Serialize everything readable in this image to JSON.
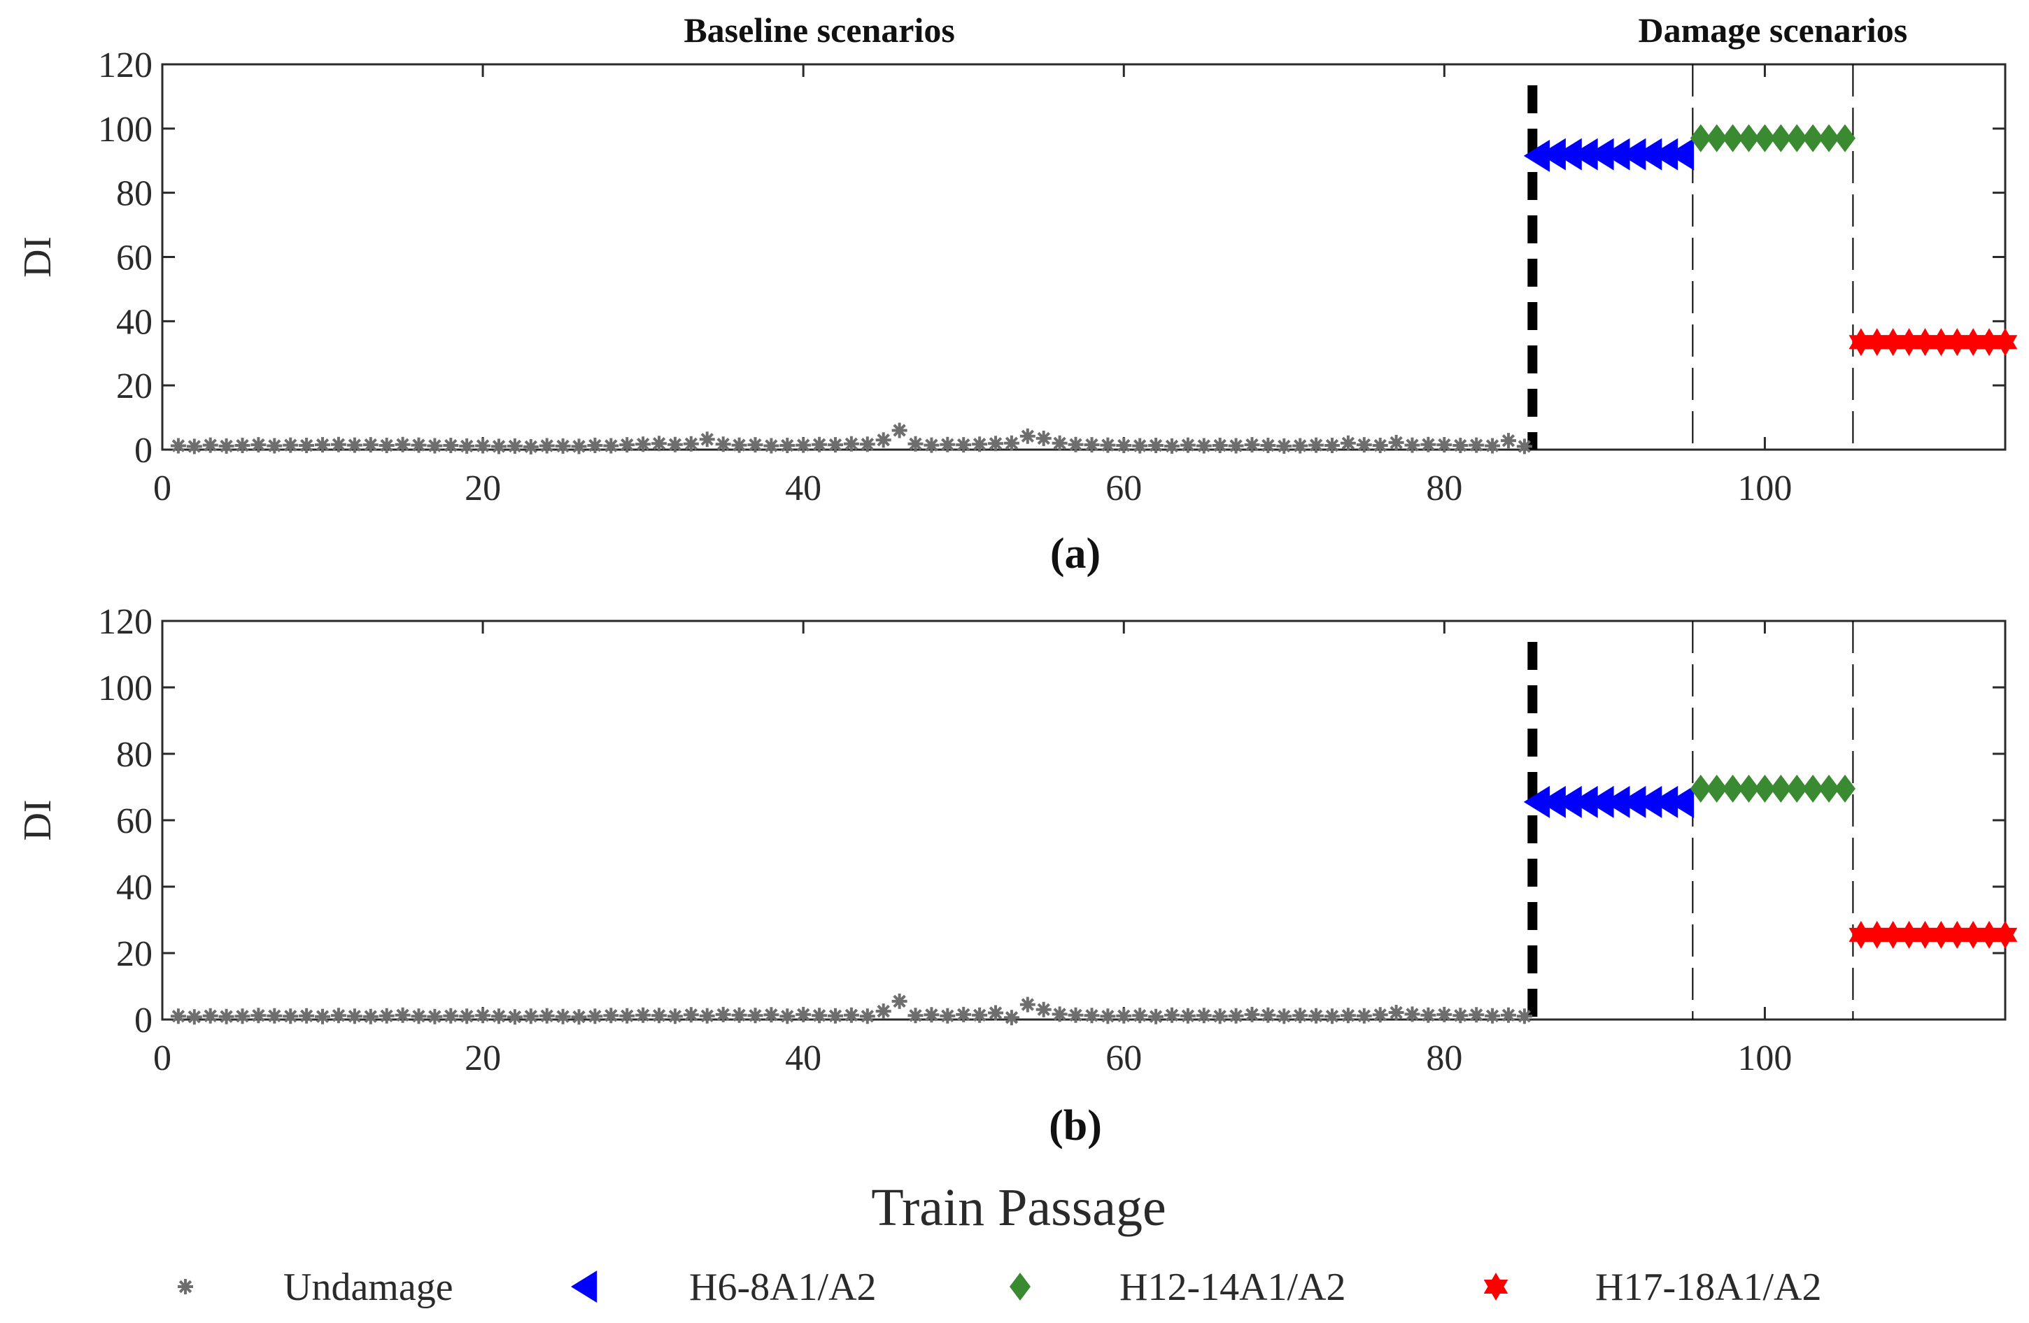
{
  "chart_data": [
    {
      "type": "scatter",
      "panel_label": "(a)",
      "ylabel": "DI",
      "xlim": [
        0,
        115
      ],
      "ylim": [
        0,
        120
      ],
      "xticks": [
        0,
        20,
        40,
        60,
        80,
        100
      ],
      "yticks": [
        0,
        20,
        40,
        60,
        80,
        100,
        120
      ],
      "section_labels": [
        "Baseline scenarios",
        "Damage scenarios"
      ],
      "separators": [
        85.5,
        95.5,
        105.5
      ],
      "series": [
        {
          "name": "Undamage",
          "marker": "asterisk",
          "color": "#6e6e6e",
          "x": [
            1,
            2,
            3,
            4,
            5,
            6,
            7,
            8,
            9,
            10,
            11,
            12,
            13,
            14,
            15,
            16,
            17,
            18,
            19,
            20,
            21,
            22,
            23,
            24,
            25,
            26,
            27,
            28,
            29,
            30,
            31,
            32,
            33,
            34,
            35,
            36,
            37,
            38,
            39,
            40,
            41,
            42,
            43,
            44,
            45,
            46,
            47,
            48,
            49,
            50,
            51,
            52,
            53,
            54,
            55,
            56,
            57,
            58,
            59,
            60,
            61,
            62,
            63,
            64,
            65,
            66,
            67,
            68,
            69,
            70,
            71,
            72,
            73,
            74,
            75,
            76,
            77,
            78,
            79,
            80,
            81,
            82,
            83,
            84,
            85
          ],
          "y": [
            1.2,
            1.0,
            1.4,
            1.1,
            1.3,
            1.5,
            1.2,
            1.4,
            1.3,
            1.5,
            1.6,
            1.4,
            1.5,
            1.3,
            1.6,
            1.4,
            1.2,
            1.3,
            1.1,
            1.2,
            1.0,
            1.1,
            0.9,
            1.2,
            1.1,
            1.0,
            1.3,
            1.2,
            1.5,
            1.7,
            1.9,
            1.6,
            1.8,
            3.2,
            1.7,
            1.4,
            1.5,
            1.2,
            1.3,
            1.4,
            1.6,
            1.5,
            1.8,
            1.7,
            3.0,
            6.0,
            1.8,
            1.4,
            1.6,
            1.5,
            1.7,
            1.9,
            2.0,
            4.2,
            3.5,
            2.0,
            1.6,
            1.5,
            1.4,
            1.3,
            1.2,
            1.3,
            1.1,
            1.4,
            1.2,
            1.3,
            1.2,
            1.5,
            1.3,
            1.1,
            1.2,
            1.4,
            1.3,
            2.0,
            1.5,
            1.3,
            2.2,
            1.4,
            1.6,
            1.5,
            1.3,
            1.4,
            1.2,
            2.8,
            1.0
          ]
        },
        {
          "name": "H6-8A1/A2",
          "marker": "triangle-left",
          "color": "#0000ff",
          "x": [
            86,
            87,
            88,
            89,
            90,
            91,
            92,
            93,
            94,
            95
          ],
          "y": [
            91.5,
            92,
            92,
            92,
            92,
            92,
            92,
            92,
            92,
            92
          ]
        },
        {
          "name": "H12-14A1/A2",
          "marker": "diamond",
          "color": "#3a8a32",
          "x": [
            96,
            97,
            98,
            99,
            100,
            101,
            102,
            103,
            104,
            105
          ],
          "y": [
            97,
            97,
            97,
            97,
            97,
            97,
            97,
            97,
            97,
            97
          ]
        },
        {
          "name": "H17-18A1/A2",
          "marker": "hexagram",
          "color": "#ff0000",
          "x": [
            106,
            107,
            108,
            109,
            110,
            111,
            112,
            113,
            114,
            115
          ],
          "y": [
            33.5,
            33.5,
            33.5,
            33.5,
            33.5,
            33.5,
            33.5,
            33.5,
            33.5,
            33.5
          ]
        }
      ]
    },
    {
      "type": "scatter",
      "panel_label": "(b)",
      "ylabel": "DI",
      "xlim": [
        0,
        115
      ],
      "ylim": [
        0,
        120
      ],
      "xticks": [
        0,
        20,
        40,
        60,
        80,
        100
      ],
      "yticks": [
        0,
        20,
        40,
        60,
        80,
        100,
        120
      ],
      "separators": [
        85.5,
        95.5,
        105.5
      ],
      "series": [
        {
          "name": "Undamage",
          "marker": "asterisk",
          "color": "#6e6e6e",
          "x": [
            1,
            2,
            3,
            4,
            5,
            6,
            7,
            8,
            9,
            10,
            11,
            12,
            13,
            14,
            15,
            16,
            17,
            18,
            19,
            20,
            21,
            22,
            23,
            24,
            25,
            26,
            27,
            28,
            29,
            30,
            31,
            32,
            33,
            34,
            35,
            36,
            37,
            38,
            39,
            40,
            41,
            42,
            43,
            44,
            45,
            46,
            47,
            48,
            49,
            50,
            51,
            52,
            53,
            54,
            55,
            56,
            57,
            58,
            59,
            60,
            61,
            62,
            63,
            64,
            65,
            66,
            67,
            68,
            69,
            70,
            71,
            72,
            73,
            74,
            75,
            76,
            77,
            78,
            79,
            80,
            81,
            82,
            83,
            84,
            85
          ],
          "y": [
            1.0,
            0.8,
            1.1,
            0.9,
            1.0,
            1.2,
            1.1,
            1.0,
            1.1,
            0.9,
            1.2,
            1.0,
            0.9,
            1.1,
            1.3,
            1.0,
            0.9,
            1.1,
            1.0,
            1.2,
            1.0,
            0.8,
            1.0,
            1.1,
            0.9,
            0.8,
            1.0,
            1.2,
            1.1,
            1.3,
            1.2,
            1.0,
            1.4,
            1.1,
            1.5,
            1.3,
            1.2,
            1.4,
            1.0,
            1.5,
            1.2,
            1.1,
            1.3,
            1.0,
            2.5,
            5.5,
            1.2,
            1.4,
            1.1,
            1.5,
            1.3,
            2.0,
            0.6,
            4.5,
            3.0,
            1.6,
            1.3,
            1.2,
            1.0,
            1.1,
            1.2,
            0.9,
            1.3,
            1.1,
            1.2,
            1.0,
            1.1,
            1.5,
            1.3,
            1.0,
            1.2,
            1.1,
            1.0,
            1.2,
            1.1,
            1.4,
            2.1,
            1.6,
            1.3,
            1.5,
            1.2,
            1.4,
            1.1,
            1.3,
            1.0
          ]
        },
        {
          "name": "H6-8A1/A2",
          "marker": "triangle-left",
          "color": "#0000ff",
          "x": [
            86,
            87,
            88,
            89,
            90,
            91,
            92,
            93,
            94,
            95
          ],
          "y": [
            65.5,
            65.5,
            65.5,
            65.5,
            65.5,
            65.5,
            65.5,
            65.5,
            65.5,
            65.5
          ]
        },
        {
          "name": "H12-14A1/A2",
          "marker": "diamond",
          "color": "#3a8a32",
          "x": [
            96,
            97,
            98,
            99,
            100,
            101,
            102,
            103,
            104,
            105
          ],
          "y": [
            69.5,
            69.5,
            69.5,
            69.5,
            69.5,
            69.5,
            69.5,
            69.5,
            69.5,
            69.5
          ]
        },
        {
          "name": "H17-18A1/A2",
          "marker": "hexagram",
          "color": "#ff0000",
          "x": [
            106,
            107,
            108,
            109,
            110,
            111,
            112,
            113,
            114,
            115
          ],
          "y": [
            25.5,
            25.5,
            25.5,
            25.5,
            25.5,
            25.5,
            25.5,
            25.5,
            25.5,
            25.5
          ]
        }
      ]
    }
  ],
  "xlabel": "Train Passage",
  "legend": {
    "placement": "bottom",
    "entries": [
      {
        "label": "Undamage",
        "marker": "asterisk",
        "color": "#6e6e6e"
      },
      {
        "label": "H6-8A1/A2",
        "marker": "triangle-left",
        "color": "#0000ff"
      },
      {
        "label": "H12-14A1/A2",
        "marker": "diamond",
        "color": "#3a8a32"
      },
      {
        "label": "H17-18A1/A2",
        "marker": "hexagram",
        "color": "#ff0000"
      }
    ]
  }
}
